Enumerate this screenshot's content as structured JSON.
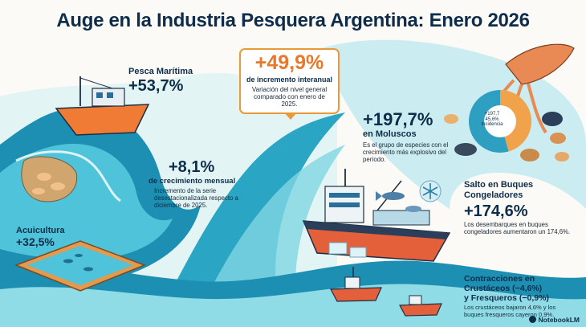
{
  "title": "Auge en la Industria Pesquera Argentina: Enero 2026",
  "headline": {
    "value": "+49,9%",
    "subtitle": "de incremento interanual",
    "description": "Variación del nivel general comparado con enero de 2025."
  },
  "maritime": {
    "label": "Pesca Marítima",
    "value": "+53,7%"
  },
  "monthly": {
    "value": "+8,1%",
    "subtitle": "de crecimiento mensual",
    "description": "Incremento de la serie desestacionalizada respecto a diciembre de 2025."
  },
  "aquaculture": {
    "label": "Acuicultura",
    "value": "+32,5%"
  },
  "molluscs": {
    "value": "+197,7%",
    "subtitle": "en Moluscos",
    "description": "Es el grupo de especies con el crecimiento más explosivo del período.",
    "pie": {
      "center_value": "+197,7",
      "center_share": "45,6%",
      "center_label": "Incidencia",
      "slices": [
        {
          "share": 45.6,
          "color": "#f0a34a"
        },
        {
          "share": 54.4,
          "color": "#2e9fc0"
        }
      ]
    }
  },
  "freezers": {
    "label_line1": "Salto en Buques",
    "label_line2": "Congeladores",
    "value": "+174,6%",
    "description": "Los desembarques en buques congeladores aumentaron un 174,6%."
  },
  "contractions": {
    "label_line1": "Contracciones en",
    "label_line2": "Crustáceos (−4,6%)",
    "label_line3": "y Fresqueros (−0,9%)",
    "description": "Los crustáceos bajaron 4,6% y los buques fresqueros cayeron 0,9%."
  },
  "logo": "NotebookLM",
  "colors": {
    "navy": "#0e2d4a",
    "orange": "#e8782a",
    "teal": "#1f8fb0",
    "sea": "#4fc3d9"
  }
}
